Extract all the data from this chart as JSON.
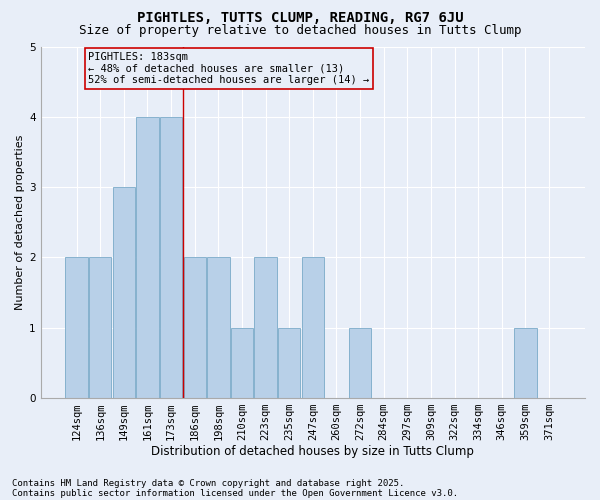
{
  "title1": "PIGHTLES, TUTTS CLUMP, READING, RG7 6JU",
  "title2": "Size of property relative to detached houses in Tutts Clump",
  "xlabel": "Distribution of detached houses by size in Tutts Clump",
  "ylabel": "Number of detached properties",
  "categories": [
    "124sqm",
    "136sqm",
    "149sqm",
    "161sqm",
    "173sqm",
    "186sqm",
    "198sqm",
    "210sqm",
    "223sqm",
    "235sqm",
    "247sqm",
    "260sqm",
    "272sqm",
    "284sqm",
    "297sqm",
    "309sqm",
    "322sqm",
    "334sqm",
    "346sqm",
    "359sqm",
    "371sqm"
  ],
  "values": [
    2,
    2,
    3,
    4,
    4,
    2,
    2,
    1,
    2,
    1,
    2,
    0,
    1,
    0,
    0,
    0,
    0,
    0,
    0,
    1,
    0
  ],
  "bar_color": "#b8d0e8",
  "bar_edge_color": "#7aaac8",
  "bg_color": "#e8eef8",
  "grid_color": "#ffffff",
  "vline_x_index": 5,
  "vline_color": "#cc0000",
  "annotation_title": "PIGHTLES: 183sqm",
  "annotation_line1": "← 48% of detached houses are smaller (13)",
  "annotation_line2": "52% of semi-detached houses are larger (14) →",
  "footnote1": "Contains HM Land Registry data © Crown copyright and database right 2025.",
  "footnote2": "Contains public sector information licensed under the Open Government Licence v3.0.",
  "ylim": [
    0,
    5
  ],
  "yticks": [
    0,
    1,
    2,
    3,
    4,
    5
  ],
  "title1_fontsize": 10,
  "title2_fontsize": 9,
  "xlabel_fontsize": 8.5,
  "ylabel_fontsize": 8,
  "tick_fontsize": 7.5,
  "annot_fontsize": 7.5,
  "footnote_fontsize": 6.5
}
